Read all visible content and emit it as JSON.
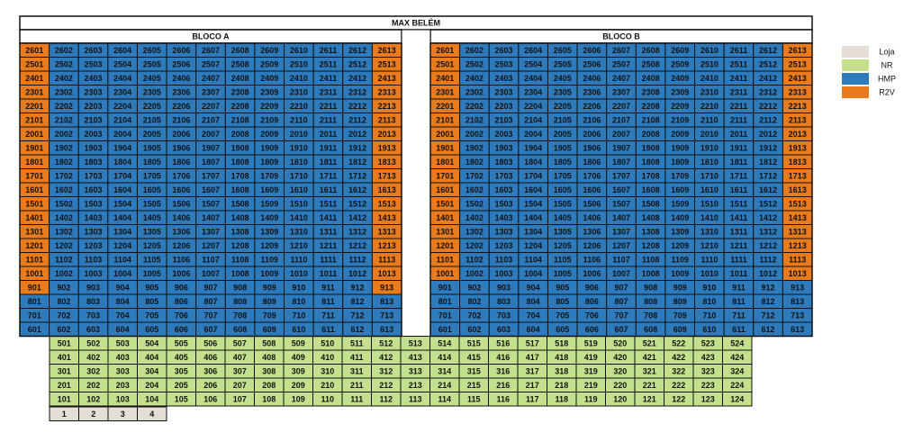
{
  "title": "MAX BELÉM",
  "legend": [
    {
      "label": "Loja",
      "color": "#e4ded6"
    },
    {
      "label": "NR",
      "color": "#c4e08c"
    },
    {
      "label": "HMP",
      "color": "#2d7bbd"
    },
    {
      "label": "R2V",
      "color": "#e97b1c"
    }
  ],
  "blocks": [
    {
      "name": "BLOCO A",
      "rows": [
        {
          "units": [
            2601,
            2602,
            2603,
            2604,
            2605,
            2606,
            2607,
            2608,
            2609,
            2610,
            2611,
            2612,
            2613
          ],
          "kinds": "3222222222223"
        },
        {
          "units": [
            2501,
            2502,
            2503,
            2504,
            2505,
            2506,
            2507,
            2508,
            2509,
            2510,
            2511,
            2512,
            2513
          ],
          "kinds": "3222222222223"
        },
        {
          "units": [
            2401,
            2402,
            2403,
            2404,
            2405,
            2406,
            2407,
            2408,
            2409,
            2410,
            2411,
            2412,
            2413
          ],
          "kinds": "3222222222223"
        },
        {
          "units": [
            2301,
            2302,
            2303,
            2304,
            2305,
            2306,
            2307,
            2308,
            2309,
            2310,
            2311,
            2312,
            2313
          ],
          "kinds": "3222222222223"
        },
        {
          "units": [
            2201,
            2202,
            2203,
            2204,
            2205,
            2206,
            2207,
            2208,
            2209,
            2210,
            2211,
            2212,
            2213
          ],
          "kinds": "3222222222223"
        },
        {
          "units": [
            2101,
            2102,
            2103,
            2104,
            2105,
            2106,
            2107,
            2108,
            2109,
            2110,
            2111,
            2112,
            2113
          ],
          "kinds": "3222222222223"
        },
        {
          "units": [
            2001,
            2002,
            2003,
            2004,
            2005,
            2006,
            2007,
            2008,
            2009,
            2010,
            2011,
            2012,
            2013
          ],
          "kinds": "3222222222223"
        },
        {
          "units": [
            1901,
            1902,
            1903,
            1904,
            1905,
            1906,
            1907,
            1908,
            1909,
            1910,
            1911,
            1912,
            1913
          ],
          "kinds": "3222222222223"
        },
        {
          "units": [
            1801,
            1802,
            1803,
            1804,
            1805,
            1806,
            1807,
            1808,
            1809,
            1810,
            1811,
            1812,
            1813
          ],
          "kinds": "3222222222223"
        },
        {
          "units": [
            1701,
            1702,
            1703,
            1704,
            1705,
            1706,
            1707,
            1708,
            1709,
            1710,
            1711,
            1712,
            1713
          ],
          "kinds": "3222222222223"
        },
        {
          "units": [
            1601,
            1602,
            1603,
            1604,
            1605,
            1606,
            1607,
            1608,
            1609,
            1610,
            1611,
            1612,
            1613
          ],
          "kinds": "3222222222223"
        },
        {
          "units": [
            1501,
            1502,
            1503,
            1504,
            1505,
            1506,
            1507,
            1508,
            1509,
            1510,
            1511,
            1512,
            1513
          ],
          "kinds": "3222222222223"
        },
        {
          "units": [
            1401,
            1402,
            1403,
            1404,
            1405,
            1406,
            1407,
            1408,
            1409,
            1410,
            1411,
            1412,
            1413
          ],
          "kinds": "3222222222223"
        },
        {
          "units": [
            1301,
            1302,
            1303,
            1304,
            1305,
            1306,
            1307,
            1308,
            1309,
            1310,
            1311,
            1312,
            1313
          ],
          "kinds": "3222222222223"
        },
        {
          "units": [
            1201,
            1202,
            1203,
            1204,
            1205,
            1206,
            1207,
            1208,
            1209,
            1210,
            1211,
            1212,
            1213
          ],
          "kinds": "3222222222223"
        },
        {
          "units": [
            1101,
            1102,
            1103,
            1104,
            1105,
            1106,
            1107,
            1108,
            1109,
            1110,
            1111,
            1112,
            1113
          ],
          "kinds": "3222222222223"
        },
        {
          "units": [
            1001,
            1002,
            1003,
            1004,
            1005,
            1006,
            1007,
            1008,
            1009,
            1010,
            1011,
            1012,
            1013
          ],
          "kinds": "3222222222223"
        },
        {
          "units": [
            901,
            902,
            903,
            904,
            905,
            906,
            907,
            908,
            909,
            910,
            911,
            912,
            913
          ],
          "kinds": "3222222222223"
        },
        {
          "units": [
            801,
            802,
            803,
            804,
            805,
            806,
            807,
            808,
            809,
            810,
            811,
            812,
            813
          ],
          "kinds": "2222222222222"
        },
        {
          "units": [
            701,
            702,
            703,
            704,
            705,
            706,
            707,
            708,
            709,
            710,
            711,
            712,
            713
          ],
          "kinds": "2222222222222"
        },
        {
          "units": [
            601,
            602,
            603,
            604,
            605,
            606,
            607,
            608,
            609,
            610,
            611,
            612,
            613
          ],
          "kinds": "2222222222222"
        }
      ]
    },
    {
      "name": "BLOCO B",
      "rows": [
        {
          "units": [
            2601,
            2602,
            2603,
            2604,
            2605,
            2606,
            2607,
            2608,
            2609,
            2610,
            2611,
            2612,
            2613
          ],
          "kinds": "3222222222223"
        },
        {
          "units": [
            2501,
            2502,
            2503,
            2504,
            2505,
            2506,
            2507,
            2508,
            2509,
            2510,
            2511,
            2512,
            2513
          ],
          "kinds": "3222222222223"
        },
        {
          "units": [
            2401,
            2402,
            2403,
            2404,
            2405,
            2406,
            2407,
            2408,
            2409,
            2410,
            2411,
            2412,
            2413
          ],
          "kinds": "3222222222223"
        },
        {
          "units": [
            2301,
            2302,
            2303,
            2304,
            2305,
            2306,
            2307,
            2308,
            2309,
            2310,
            2311,
            2312,
            2313
          ],
          "kinds": "3222222222223"
        },
        {
          "units": [
            2201,
            2202,
            2203,
            2204,
            2205,
            2206,
            2207,
            2208,
            2209,
            2210,
            2211,
            2212,
            2213
          ],
          "kinds": "3222222222223"
        },
        {
          "units": [
            2101,
            2102,
            2103,
            2104,
            2105,
            2106,
            2107,
            2108,
            2109,
            2110,
            2111,
            2112,
            2113
          ],
          "kinds": "3222222222223"
        },
        {
          "units": [
            2001,
            2002,
            2003,
            2004,
            2005,
            2006,
            2007,
            2008,
            2009,
            2010,
            2011,
            2012,
            2013
          ],
          "kinds": "3222222222223"
        },
        {
          "units": [
            1901,
            1902,
            1903,
            1904,
            1905,
            1906,
            1907,
            1908,
            1909,
            1910,
            1911,
            1912,
            1913
          ],
          "kinds": "3222222222223"
        },
        {
          "units": [
            1801,
            1802,
            1803,
            1804,
            1805,
            1806,
            1807,
            1808,
            1809,
            1810,
            1811,
            1812,
            1813
          ],
          "kinds": "3222222222223"
        },
        {
          "units": [
            1701,
            1702,
            1703,
            1704,
            1705,
            1706,
            1707,
            1708,
            1709,
            1710,
            1711,
            1712,
            1713
          ],
          "kinds": "3222222222223"
        },
        {
          "units": [
            1601,
            1602,
            1603,
            1604,
            1605,
            1606,
            1607,
            1608,
            1609,
            1610,
            1611,
            1612,
            1613
          ],
          "kinds": "3222222222223"
        },
        {
          "units": [
            1501,
            1502,
            1503,
            1504,
            1505,
            1506,
            1507,
            1508,
            1509,
            1510,
            1511,
            1512,
            1513
          ],
          "kinds": "3222222222223"
        },
        {
          "units": [
            1401,
            1402,
            1403,
            1404,
            1405,
            1406,
            1407,
            1408,
            1409,
            1410,
            1411,
            1412,
            1413
          ],
          "kinds": "3222222222223"
        },
        {
          "units": [
            1301,
            1302,
            1303,
            1304,
            1305,
            1306,
            1307,
            1308,
            1309,
            1310,
            1311,
            1312,
            1313
          ],
          "kinds": "3222222222223"
        },
        {
          "units": [
            1201,
            1202,
            1203,
            1204,
            1205,
            1206,
            1207,
            1208,
            1209,
            1210,
            1211,
            1212,
            1213
          ],
          "kinds": "3222222222223"
        },
        {
          "units": [
            1101,
            1102,
            1103,
            1104,
            1105,
            1106,
            1107,
            1108,
            1109,
            1110,
            1111,
            1112,
            1113
          ],
          "kinds": "3222222222223"
        },
        {
          "units": [
            1001,
            1002,
            1003,
            1004,
            1005,
            1006,
            1007,
            1008,
            1009,
            1010,
            1011,
            1012,
            1013
          ],
          "kinds": "3222222222223"
        },
        {
          "units": [
            901,
            902,
            903,
            904,
            905,
            906,
            907,
            908,
            909,
            910,
            911,
            912,
            913
          ],
          "kinds": "2222222222222"
        },
        {
          "units": [
            801,
            802,
            803,
            804,
            805,
            806,
            807,
            808,
            809,
            810,
            811,
            812,
            813
          ],
          "kinds": "2222222222222"
        },
        {
          "units": [
            701,
            702,
            703,
            704,
            705,
            706,
            707,
            708,
            709,
            710,
            711,
            712,
            713
          ],
          "kinds": "2222222222222"
        },
        {
          "units": [
            601,
            602,
            603,
            604,
            605,
            606,
            607,
            608,
            609,
            610,
            611,
            612,
            613
          ],
          "kinds": "2222222222222"
        }
      ]
    }
  ],
  "lower": [
    {
      "units": [
        501,
        502,
        503,
        504,
        505,
        506,
        507,
        508,
        509,
        510,
        511,
        512,
        513,
        514,
        515,
        516,
        517,
        518,
        519,
        520,
        521,
        522,
        523,
        524
      ],
      "kinds": "111111111111111111111111"
    },
    {
      "units": [
        401,
        402,
        403,
        404,
        405,
        406,
        407,
        408,
        409,
        410,
        411,
        412,
        413,
        414,
        415,
        416,
        417,
        418,
        419,
        420,
        421,
        422,
        423,
        424
      ],
      "kinds": "111111111111111111111111"
    },
    {
      "units": [
        301,
        302,
        303,
        304,
        305,
        306,
        307,
        308,
        309,
        310,
        311,
        312,
        313,
        314,
        315,
        316,
        317,
        318,
        319,
        320,
        321,
        322,
        323,
        324
      ],
      "kinds": "111111111111111111111111"
    },
    {
      "units": [
        201,
        202,
        203,
        204,
        205,
        206,
        207,
        208,
        209,
        210,
        211,
        212,
        213,
        214,
        215,
        216,
        217,
        218,
        219,
        220,
        221,
        222,
        223,
        224
      ],
      "kinds": "111111111111111111111111"
    },
    {
      "units": [
        101,
        102,
        103,
        104,
        105,
        106,
        107,
        108,
        109,
        110,
        111,
        112,
        113,
        114,
        115,
        116,
        117,
        118,
        119,
        120,
        121,
        122,
        123,
        124
      ],
      "kinds": "111111111111111111111111"
    }
  ],
  "shops": {
    "units": [
      1,
      2,
      3,
      4
    ],
    "kinds": "0000"
  }
}
